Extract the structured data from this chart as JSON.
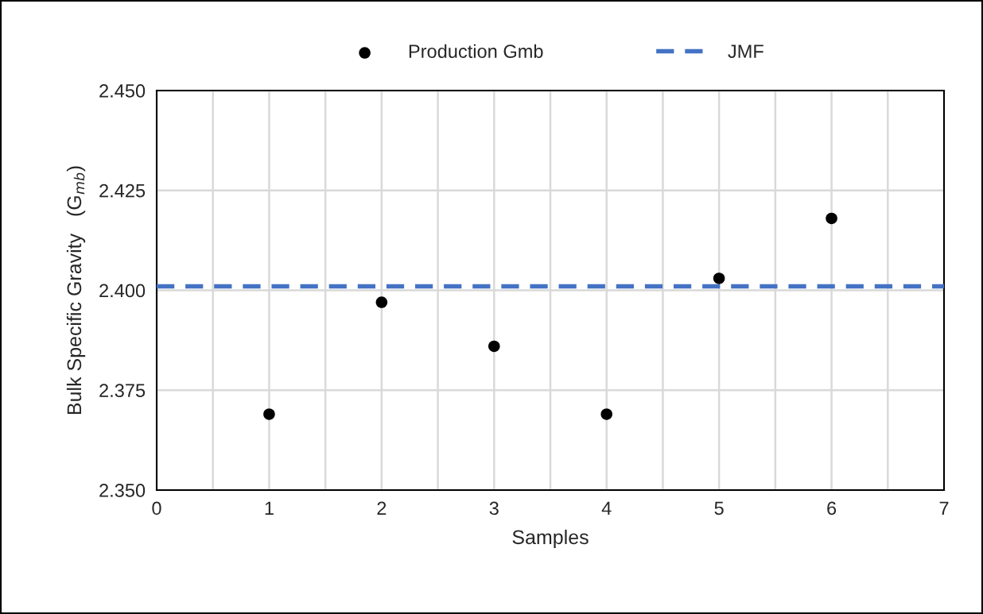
{
  "chart_data": {
    "type": "scatter",
    "xlabel": "Samples",
    "ylabel": "Bulk Specific Gravity   (G$_{mb}$)",
    "x": [
      1,
      2,
      3,
      4,
      5,
      6
    ],
    "series": [
      {
        "name": "Production Gmb",
        "color": "#000000",
        "marker": "circle",
        "values": [
          2.369,
          2.397,
          2.386,
          2.369,
          2.403,
          2.418
        ]
      },
      {
        "name": "JMF",
        "type": "line",
        "color": "#4472c4",
        "line_style": "dashed",
        "marker": "none",
        "x": [
          0,
          7
        ],
        "values": [
          2.401,
          2.401
        ]
      }
    ],
    "xlim": [
      0,
      7
    ],
    "ylim": [
      2.35,
      2.45
    ],
    "xticks": [
      0,
      {
        "value": 0.5,
        "label": null
      },
      1,
      {
        "value": 1.5,
        "label": null
      },
      2,
      {
        "value": 2.5,
        "label": null
      },
      3,
      {
        "value": 3.5,
        "label": null
      },
      4,
      {
        "value": 4.5,
        "label": null
      },
      5,
      {
        "value": 5.5,
        "label": null
      },
      6,
      {
        "value": 6.5,
        "label": null
      },
      7
    ],
    "yticks": [
      {
        "value": 2.35,
        "label": "2.350"
      },
      {
        "value": 2.375,
        "label": "2.375"
      },
      {
        "value": 2.4,
        "label": "2.400"
      },
      {
        "value": 2.425,
        "label": "2.425"
      },
      {
        "value": 2.45,
        "label": "2.450"
      }
    ],
    "grid": true,
    "legend": "top"
  }
}
